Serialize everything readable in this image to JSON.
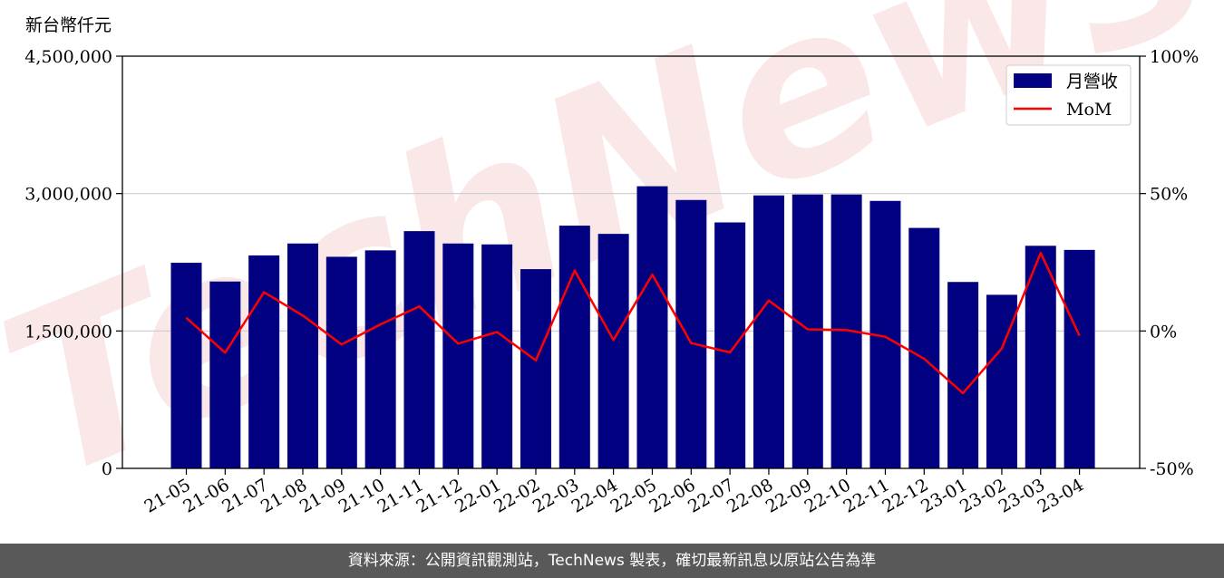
{
  "chart_data": {
    "type": "bar",
    "y_unit_label": "新台幣仟元",
    "categories": [
      "21-05",
      "21-06",
      "21-07",
      "21-08",
      "21-09",
      "21-10",
      "21-11",
      "21-12",
      "22-01",
      "22-02",
      "22-03",
      "22-04",
      "22-05",
      "22-06",
      "22-07",
      "22-08",
      "22-09",
      "22-10",
      "22-11",
      "22-12",
      "23-01",
      "23-02",
      "23-03",
      "23-04"
    ],
    "series": [
      {
        "name": "月營收",
        "type": "bar",
        "axis": "left",
        "color": "#000080",
        "values": [
          2245000,
          2040000,
          2325000,
          2455000,
          2310000,
          2380000,
          2590000,
          2455000,
          2445000,
          2175000,
          2650000,
          2560000,
          3080000,
          2930000,
          2685000,
          2980000,
          2990000,
          2990000,
          2920000,
          2625000,
          2035000,
          1895000,
          2430000,
          2385000
        ]
      },
      {
        "name": "MoM",
        "type": "line",
        "axis": "right",
        "color": "#ff0000",
        "unit": "%",
        "values": [
          4.8,
          -7.9,
          14.1,
          5.6,
          -4.9,
          2.4,
          8.9,
          -4.6,
          -0.4,
          -10.7,
          22.0,
          -3.3,
          20.5,
          -4.4,
          -7.8,
          11.1,
          0.6,
          0.3,
          -2.1,
          -10.1,
          -22.6,
          -6.4,
          28.4,
          -1.7
        ]
      }
    ],
    "y_left": {
      "min": 0,
      "max": 4500000,
      "ticks": [
        0,
        1500000,
        3000000,
        4500000
      ],
      "tick_labels": [
        "0",
        "1,500,000",
        "3,000,000",
        "4,500,000"
      ]
    },
    "y_right": {
      "min": -50,
      "max": 100,
      "ticks": [
        -50,
        0,
        50,
        100
      ],
      "tick_labels": [
        "-50%",
        "0%",
        "50%",
        "100%"
      ]
    },
    "grid": "horizontal",
    "legend": "top-right",
    "legend_bar_label": "月營收",
    "legend_line_label": "MoM"
  },
  "watermark_text": "TechNews",
  "footer_text": "資料來源：公開資訊觀測站，TechNews 製表，確切最新訊息以原站公告為準"
}
